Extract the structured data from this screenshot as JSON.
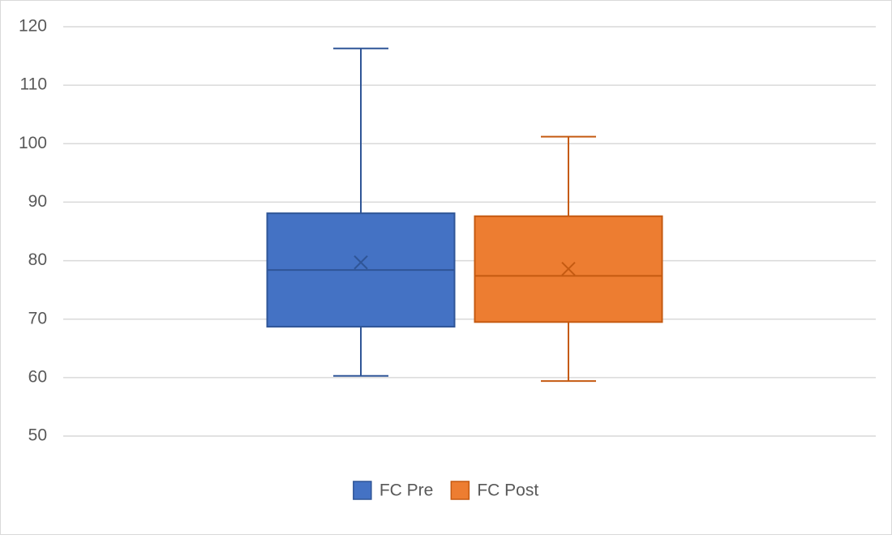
{
  "chart_data": {
    "type": "box",
    "series": [
      {
        "name": "FC Pre",
        "color": "#4472c4",
        "stroke": "#2f5597",
        "min": 60.3,
        "q1": 68.7,
        "median": 78.4,
        "q3": 88.1,
        "max": 116.3,
        "mean": 79.7
      },
      {
        "name": "FC Post",
        "color": "#ed7d31",
        "stroke": "#c55a11",
        "min": 59.4,
        "q1": 69.5,
        "median": 77.4,
        "q3": 87.6,
        "max": 101.2,
        "mean": 78.6
      }
    ],
    "ylim": [
      50,
      120
    ],
    "yticks": [
      50,
      60,
      70,
      80,
      90,
      100,
      110,
      120
    ],
    "grid": true,
    "legend": "bottom"
  }
}
